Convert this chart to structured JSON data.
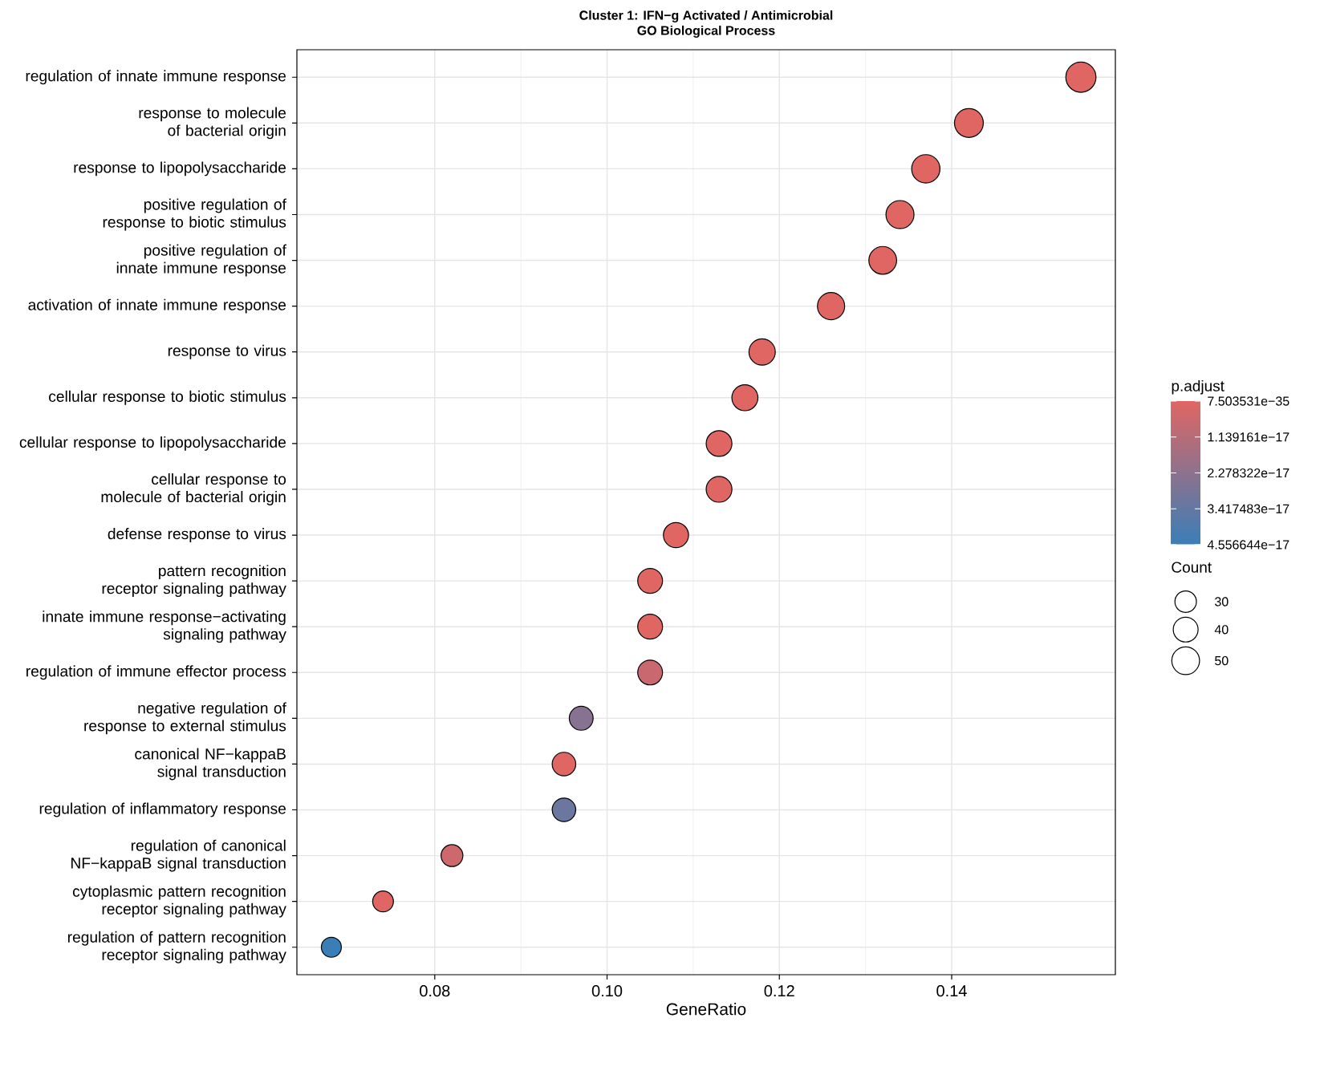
{
  "chart_data": {
    "type": "bubble",
    "title": "Cluster 1: IFN−g Activated / Antimicrobial",
    "subtitle": "GO Biological Process",
    "xlabel": "GeneRatio",
    "clabel": "p.adjust",
    "legend_title": "Count",
    "orientation": "horizontal",
    "grid": true,
    "categories": [
      "regulation of innate immune response",
      "response to molecule of bacterial origin",
      "response to lipopolysaccharide",
      "positive regulation of response to biotic stimulus",
      "positive regulation of innate immune response",
      "activation of innate immune response",
      "response to virus",
      "cellular response to biotic stimulus",
      "cellular response to lipopolysaccharide",
      "cellular response to molecule of bacterial origin",
      "defense response to virus",
      "pattern recognition receptor signaling pathway",
      "innate immune response−activating signaling pathway",
      "regulation of immune effector process",
      "negative regulation of response to external stimulus",
      "canonical NF−kappaB signal transduction",
      "regulation of inflammatory response",
      "regulation of canonical NF−kappaB signal transduction",
      "cytoplasmic pattern recognition receptor signaling pathway",
      "regulation of pattern recognition receptor signaling pathway"
    ],
    "values": [
      0.155,
      0.142,
      0.137,
      0.134,
      0.132,
      0.126,
      0.118,
      0.116,
      0.113,
      0.113,
      0.108,
      0.105,
      0.105,
      0.105,
      0.097,
      0.095,
      0.095,
      0.082,
      0.074,
      0.068
    ],
    "sizes": [
      59,
      54,
      52,
      51,
      50,
      48,
      45,
      44,
      43,
      43,
      41,
      40,
      40,
      40,
      37,
      36,
      36,
      31,
      28,
      26
    ],
    "size_legend": [
      30,
      40,
      50
    ],
    "cvalues": [
      7.503531e-35,
      7.503531e-35,
      7.503531e-35,
      7.503531e-35,
      7.503531e-35,
      7.503531e-35,
      7.503531e-35,
      7.503531e-35,
      7.503531e-35,
      7.503531e-35,
      7.503531e-35,
      7.503531e-35,
      7.503531e-35,
      6.3e-18,
      2.45e-17,
      7.503531e-35,
      3.2e-17,
      5.2e-18,
      7.503531e-35,
      4.556644e-17
    ],
    "colors": [
      "#e06663",
      "#e06663",
      "#e06663",
      "#e06663",
      "#e06663",
      "#e06663",
      "#e06663",
      "#e06663",
      "#e06663",
      "#e06663",
      "#e06663",
      "#e06663",
      "#e06663",
      "#c9696f",
      "#877391",
      "#e06663",
      "#6b779f",
      "#cd696d",
      "#e06663",
      "#3a7eb8"
    ],
    "clim": [
      7.503531e-35,
      4.556644e-17
    ],
    "cticks": [
      {
        "value": 7.503531e-35,
        "label": "7.503531e−35"
      },
      {
        "value": 1.139161e-17,
        "label": "1.139161e−17"
      },
      {
        "value": 2.278322e-17,
        "label": "2.278322e−17"
      },
      {
        "value": 3.417483e-17,
        "label": "3.417483e−17"
      },
      {
        "value": 4.556644e-17,
        "label": "4.556644e−17"
      }
    ],
    "xlim": [
      0.064,
      0.159
    ],
    "xticks": [
      {
        "value": 0.08,
        "label": "0.08"
      },
      {
        "value": 0.1,
        "label": "0.10"
      },
      {
        "value": 0.12,
        "label": "0.12"
      },
      {
        "value": 0.14,
        "label": "0.14"
      }
    ]
  }
}
